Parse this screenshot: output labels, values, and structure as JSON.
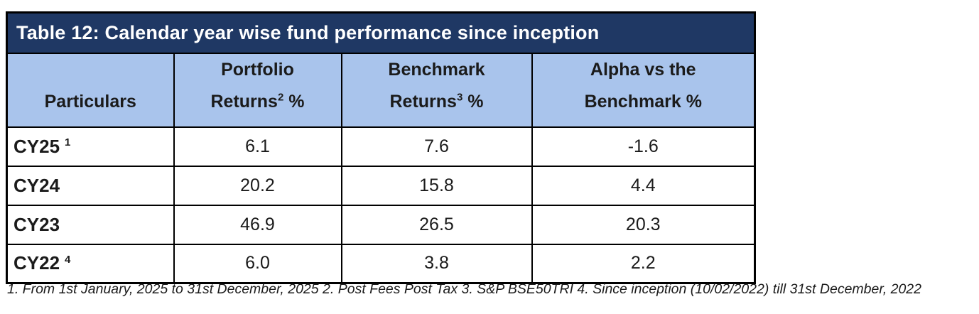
{
  "table": {
    "title": "Table 12: Calendar year wise fund performance since inception",
    "columns": {
      "particulars": {
        "label": "Particulars"
      },
      "portfolio": {
        "line1": "Portfolio",
        "line2_pre": "Returns",
        "line2_sup": "2",
        "line2_post": " %"
      },
      "benchmark": {
        "line1": "Benchmark",
        "line2_pre": "Returns",
        "line2_sup": "3",
        "line2_post": " %"
      },
      "alpha": {
        "line1": "Alpha vs the",
        "line2_pre": "Benchmark",
        "line2_sup": "",
        "line2_post": " %"
      }
    },
    "rows": [
      {
        "label": "CY25",
        "label_sup": "1",
        "portfolio": "6.1",
        "benchmark": "7.6",
        "alpha": "-1.6"
      },
      {
        "label": "CY24",
        "label_sup": "",
        "portfolio": "20.2",
        "benchmark": "15.8",
        "alpha": "4.4"
      },
      {
        "label": "CY23",
        "label_sup": "",
        "portfolio": "46.9",
        "benchmark": "26.5",
        "alpha": "20.3"
      },
      {
        "label": "CY22",
        "label_sup": "4",
        "portfolio": "6.0",
        "benchmark": "3.8",
        "alpha": "2.2"
      }
    ],
    "footnote": "1. From 1st January, 2025 to 31st December, 2025 2.  Post Fees Post Tax  3. S&P BSE50TRI 4. Since inception (10/02/2022) till 31st December, 2022",
    "colors": {
      "title_bg": "#1f3864",
      "title_text": "#ffffff",
      "header_bg": "#a9c4ec",
      "border": "#000000",
      "body_text": "#1b1b1b"
    }
  }
}
